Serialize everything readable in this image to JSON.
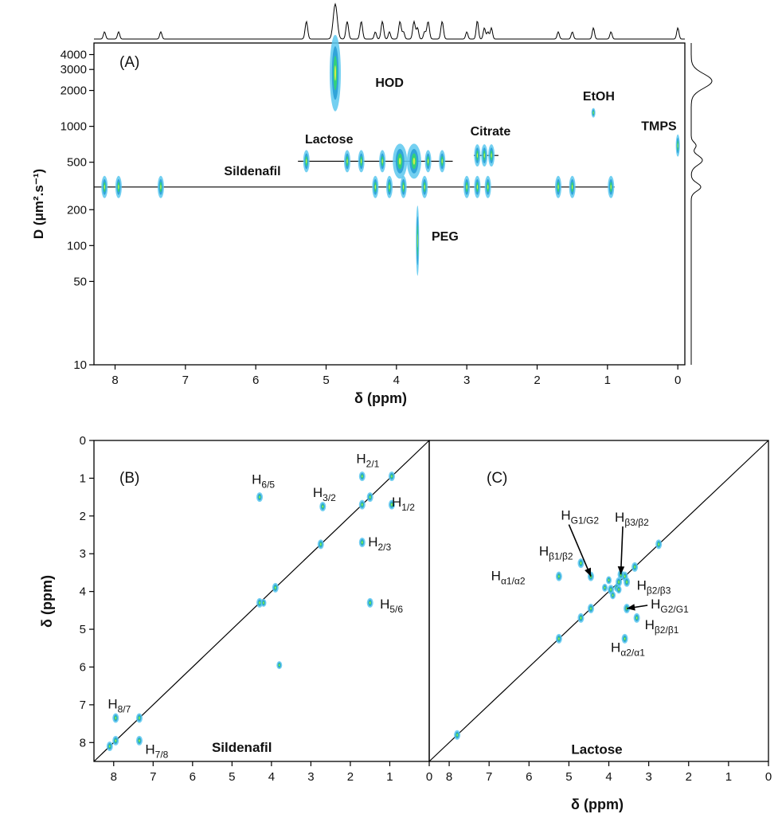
{
  "chart_data": [
    {
      "panel": "(A)",
      "type": "scatter",
      "title": "",
      "xlabel": "δ (ppm)",
      "ylabel": "D (μm².s⁻¹)",
      "xlim": [
        8.3,
        -0.1
      ],
      "ylim": [
        10,
        5000
      ],
      "yscale": "log",
      "x_ticks": [
        8,
        7,
        6,
        5,
        4,
        3,
        2,
        1,
        0
      ],
      "y_ticks": [
        10,
        50,
        100,
        200,
        500,
        1000,
        2000,
        3000,
        4000
      ],
      "grid": false,
      "series": [
        {
          "name": "HOD",
          "label_pos": [
            4.3,
            2150
          ],
          "points": [
            [
              4.87,
              2800
            ]
          ]
        },
        {
          "name": "Lactose",
          "label_pos": [
            5.3,
            720
          ],
          "points": [
            [
              5.28,
              510
            ],
            [
              4.7,
              510
            ],
            [
              4.5,
              510
            ],
            [
              4.2,
              510
            ],
            [
              3.95,
              510
            ],
            [
              3.75,
              510
            ],
            [
              3.55,
              510
            ],
            [
              3.35,
              510
            ]
          ]
        },
        {
          "name": "Citrate",
          "label_pos": [
            2.95,
            840
          ],
          "points": [
            [
              2.85,
              570
            ],
            [
              2.75,
              570
            ],
            [
              2.65,
              570
            ]
          ]
        },
        {
          "name": "EtOH",
          "label_pos": [
            1.35,
            1650
          ],
          "points": [
            [
              1.2,
              1300
            ]
          ]
        },
        {
          "name": "TMPS",
          "label_pos": [
            0.52,
            930
          ],
          "points": [
            [
              0.0,
              690
            ]
          ]
        },
        {
          "name": "Sildenafil",
          "label_pos": [
            6.45,
            390
          ],
          "points": [
            [
              8.15,
              310
            ],
            [
              7.95,
              310
            ],
            [
              7.35,
              310
            ],
            [
              4.3,
              310
            ],
            [
              4.1,
              310
            ],
            [
              3.9,
              310
            ],
            [
              3.6,
              310
            ],
            [
              3.0,
              310
            ],
            [
              2.85,
              310
            ],
            [
              2.7,
              310
            ],
            [
              1.7,
              310
            ],
            [
              1.5,
              310
            ],
            [
              0.95,
              310
            ]
          ]
        },
        {
          "name": "PEG",
          "label_pos": [
            3.5,
            110
          ],
          "points": [
            [
              3.7,
              110
            ]
          ]
        }
      ],
      "reference_lines": [
        {
          "series": "Sildenafil",
          "y": 310,
          "x_range": [
            8.3,
            0.9
          ]
        },
        {
          "series": "Lactose",
          "y": 510,
          "x_range": [
            5.4,
            3.2
          ]
        },
        {
          "series": "Citrate",
          "y": 570,
          "x_range": [
            2.9,
            2.55
          ]
        }
      ],
      "projection_f1": "1H spectrum (top)",
      "projection_f2": "diffusion projection (right)"
    },
    {
      "panel": "(B)",
      "type": "scatter",
      "title": "Sildenafil",
      "xlabel": "",
      "ylabel": "δ (ppm)",
      "xlim": [
        8.5,
        0
      ],
      "ylim": [
        0,
        8.5
      ],
      "x_ticks": [
        8,
        7,
        6,
        5,
        4,
        3,
        2,
        1,
        0
      ],
      "y_ticks": [
        0,
        1,
        2,
        3,
        4,
        5,
        6,
        7,
        8
      ],
      "diagonal": true,
      "peaks": [
        {
          "label": "H6/5",
          "main": "H",
          "sub": "6/5",
          "x": 4.3,
          "y": 1.5,
          "label_x": 4.5,
          "label_y": 1.15
        },
        {
          "label": "H3/2",
          "main": "H",
          "sub": "3/2",
          "x": 2.7,
          "y": 1.75,
          "label_x": 2.95,
          "label_y": 1.5
        },
        {
          "label": "H2/1",
          "main": "H",
          "sub": "2/1",
          "x": 1.7,
          "y": 0.95,
          "label_x": 1.85,
          "label_y": 0.6
        },
        {
          "label": "H1/2",
          "main": "H",
          "sub": "1/2",
          "x": 0.95,
          "y": 1.7,
          "label_x": 0.95,
          "label_y": 1.75
        },
        {
          "label": "H2/3",
          "main": "H",
          "sub": "2/3",
          "x": 1.7,
          "y": 2.7,
          "label_x": 1.55,
          "label_y": 2.8
        },
        {
          "label": "H5/6",
          "main": "H",
          "sub": "5/6",
          "x": 1.5,
          "y": 4.3,
          "label_x": 1.25,
          "label_y": 4.45
        },
        {
          "label": "H8/7",
          "main": "H",
          "sub": "8/7",
          "x": 7.95,
          "y": 7.35,
          "label_x": 8.15,
          "label_y": 7.1
        },
        {
          "label": "H7/8",
          "main": "H",
          "sub": "7/8",
          "x": 7.35,
          "y": 7.95,
          "label_x": 7.2,
          "label_y": 8.3
        }
      ],
      "diag_peaks": [
        8.1,
        7.95,
        7.35,
        4.3,
        3.9,
        2.75,
        1.7,
        1.5,
        0.95
      ],
      "extra_peaks": [
        [
          3.8,
          5.95
        ],
        [
          4.2,
          4.3
        ]
      ],
      "name_label": {
        "text": "Sildenafil",
        "x": 4.75,
        "y": 8.25
      }
    },
    {
      "panel": "(C)",
      "type": "scatter",
      "title": "Lactose",
      "xlabel": "δ (ppm)",
      "ylabel": "",
      "xlim": [
        8.5,
        0
      ],
      "ylim": [
        0,
        8.5
      ],
      "x_ticks": [
        8,
        7,
        6,
        5,
        4,
        3,
        2,
        1,
        0
      ],
      "diagonal": true,
      "peaks": [
        {
          "label": "HG1/G2",
          "main": "H",
          "sub": "G1/G2",
          "x": 4.45,
          "y": 3.6,
          "label_x": 5.2,
          "label_y": 2.1,
          "arrow": true
        },
        {
          "label": "Hβ3/β2",
          "main": "H",
          "sub": "β3/β2",
          "x": 3.7,
          "y": 3.55,
          "label_x": 3.85,
          "label_y": 2.15,
          "arrow": true
        },
        {
          "label": "Hβ1/β2",
          "main": "H",
          "sub": "β1/β2",
          "x": 4.7,
          "y": 3.25,
          "label_x": 5.75,
          "label_y": 3.05
        },
        {
          "label": "Hα1/α2",
          "main": "H",
          "sub": "α1/α2",
          "x": 5.25,
          "y": 3.6,
          "label_x": 6.95,
          "label_y": 3.7
        },
        {
          "label": "Hβ2/β3",
          "main": "H",
          "sub": "β2/β3",
          "x": 3.55,
          "y": 3.75,
          "label_x": 3.3,
          "label_y": 3.95
        },
        {
          "label": "HG2/G1",
          "main": "H",
          "sub": "G2/G1",
          "x": 3.55,
          "y": 4.45,
          "label_x": 2.95,
          "label_y": 4.45,
          "arrow": true
        },
        {
          "label": "Hβ2/β1",
          "main": "H",
          "sub": "β2/β1",
          "x": 3.3,
          "y": 4.7,
          "label_x": 3.1,
          "label_y": 5.0
        },
        {
          "label": "Hα2/α1",
          "main": "H",
          "sub": "α2/α1",
          "x": 3.6,
          "y": 5.25,
          "label_x": 3.95,
          "label_y": 5.6
        }
      ],
      "diag_peaks": [
        7.8,
        5.25,
        4.7,
        4.45,
        3.95,
        3.75,
        3.6,
        3.35,
        2.75
      ],
      "extra_peaks": [
        [
          3.8,
          3.9
        ],
        [
          4.0,
          3.7
        ],
        [
          3.9,
          4.1
        ],
        [
          3.75,
          3.95
        ],
        [
          4.1,
          3.9
        ]
      ],
      "name_label": {
        "text": "Lactose",
        "x": 4.3,
        "y": 8.3
      }
    }
  ]
}
